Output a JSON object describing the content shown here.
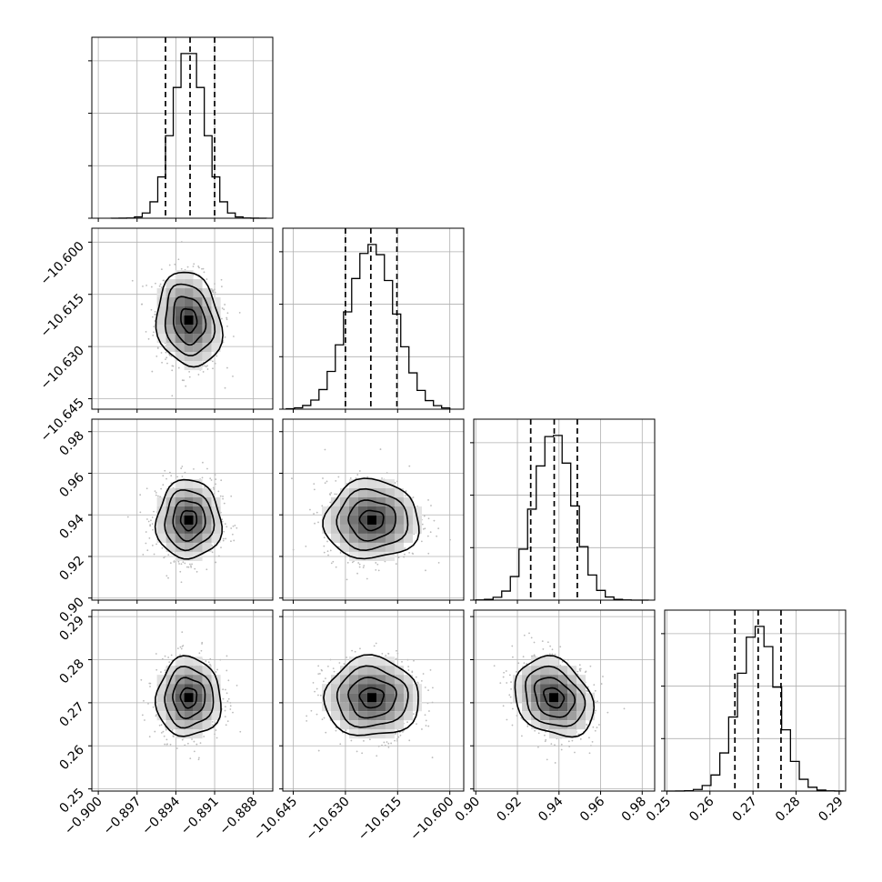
{
  "chart_data": {
    "type": "corner",
    "grid": true,
    "parameters": [
      {
        "range": [
          -0.9005,
          -0.8865
        ],
        "ticks": [
          "−0.900",
          "−0.897",
          "−0.894",
          "−0.891",
          "−0.888"
        ],
        "tick_values": [
          -0.9,
          -0.897,
          -0.894,
          -0.891,
          -0.888
        ],
        "quantiles": [
          -0.8948,
          -0.8929,
          -0.891
        ],
        "mode": -0.893,
        "sigma": 0.00125,
        "hist_range": [
          -0.899,
          -0.887
        ]
      },
      {
        "range": [
          -10.648,
          -10.596
        ],
        "ticks": [
          "−10.645",
          "−10.630",
          "−10.615",
          "−10.600"
        ],
        "tick_values": [
          -10.645,
          -10.63,
          -10.615,
          -10.6
        ],
        "quantiles": [
          -10.63,
          -10.6227,
          -10.6152
        ],
        "mode": -10.6224,
        "sigma": 0.0068,
        "hist_range": [
          -10.647,
          -10.6
        ]
      },
      {
        "range": [
          0.899,
          0.986
        ],
        "ticks": [
          "0.90",
          "0.92",
          "0.94",
          "0.96",
          "0.98"
        ],
        "tick_values": [
          0.9,
          0.92,
          0.94,
          0.96,
          0.98
        ],
        "quantiles": [
          0.9264,
          0.9377,
          0.9488
        ],
        "mode": 0.9375,
        "sigma": 0.0095,
        "hist_range": [
          0.9,
          0.983
        ]
      },
      {
        "range": [
          0.2495,
          0.2915
        ],
        "ticks": [
          "0.25",
          "0.26",
          "0.27",
          "0.28",
          "0.29"
        ],
        "tick_values": [
          0.25,
          0.26,
          0.27,
          0.28,
          0.29
        ],
        "quantiles": [
          0.2658,
          0.2712,
          0.2765
        ],
        "mode": 0.2712,
        "sigma": 0.0046,
        "hist_range": [
          0.25,
          0.291
        ]
      }
    ],
    "pair_correlations": {
      "1-0": -0.15,
      "2-0": 0.0,
      "2-1": 0.0,
      "3-0": 0.0,
      "3-1": 0.0,
      "3-2": -0.25
    },
    "contour_levels_sigma": [
      0.5,
      1.0,
      1.5,
      2.0
    ],
    "colors": {
      "line": "#000000",
      "grid": "#b0b0b0",
      "points": "#bbbbbb"
    }
  }
}
